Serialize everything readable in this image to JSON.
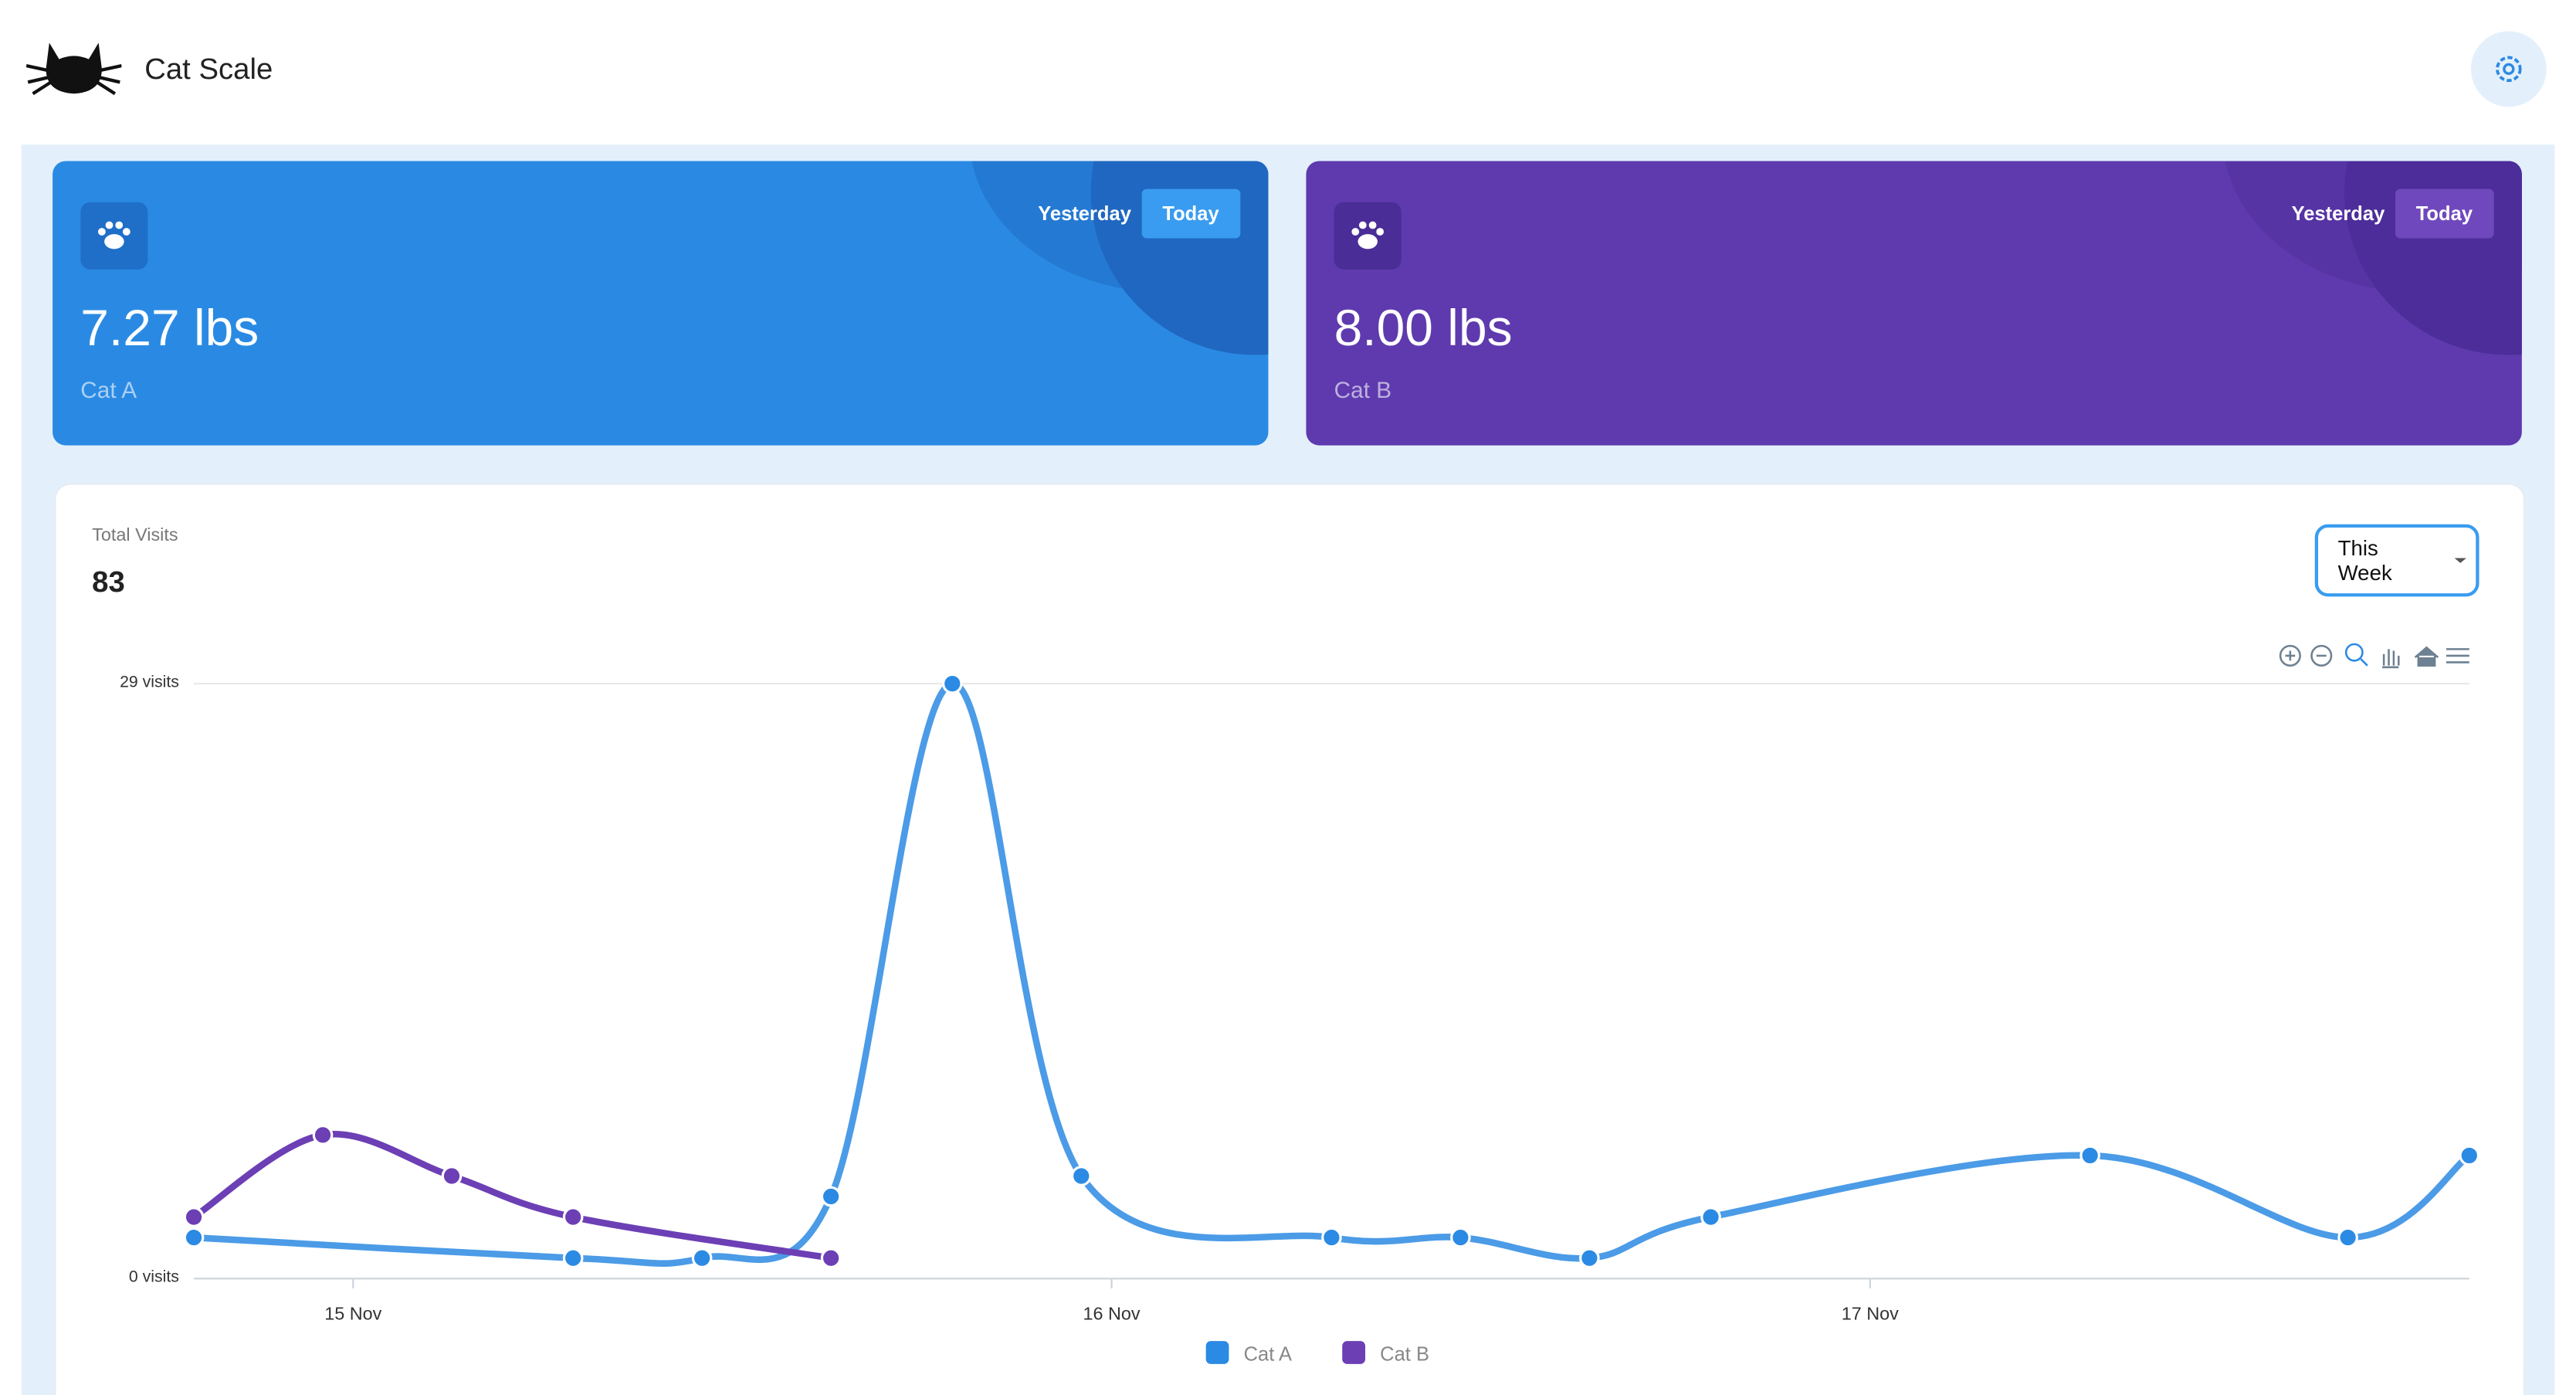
{
  "header": {
    "title": "Cat Scale"
  },
  "cards": [
    {
      "weight": "7.27 lbs",
      "name": "Cat A",
      "toggle": [
        "Yesterday",
        "Today"
      ]
    },
    {
      "weight": "8.00 lbs",
      "name": "Cat B",
      "toggle": [
        "Yesterday",
        "Today"
      ]
    }
  ],
  "summary": {
    "label": "Total Visits",
    "value": "83",
    "period": "This Week"
  },
  "chart_data": {
    "type": "line",
    "xlim": [
      14.79,
      17.79
    ],
    "xticks": [
      {
        "value": 15,
        "label": "15 Nov"
      },
      {
        "value": 16,
        "label": "16 Nov"
      },
      {
        "value": 17,
        "label": "17 Nov"
      }
    ],
    "ylim": [
      0,
      29
    ],
    "yticks": [
      {
        "value": 0,
        "label": "0 visits"
      },
      {
        "value": 29,
        "label": "29 visits"
      }
    ],
    "grid": true,
    "series": [
      {
        "name": "Cat A",
        "color": "#2b8ae3",
        "x": [
          14.79,
          15.29,
          15.46,
          15.63,
          15.79,
          15.96,
          16.29,
          16.46,
          16.63,
          16.79,
          17.29,
          17.63,
          17.79
        ],
        "values": [
          2,
          1,
          1,
          4,
          29,
          5,
          2,
          2,
          1,
          3,
          6,
          2,
          6
        ]
      },
      {
        "name": "Cat B",
        "color": "#6c3fb5",
        "x": [
          14.79,
          14.96,
          15.13,
          15.29,
          15.63
        ],
        "values": [
          3,
          7,
          5,
          3,
          1
        ]
      }
    ]
  }
}
